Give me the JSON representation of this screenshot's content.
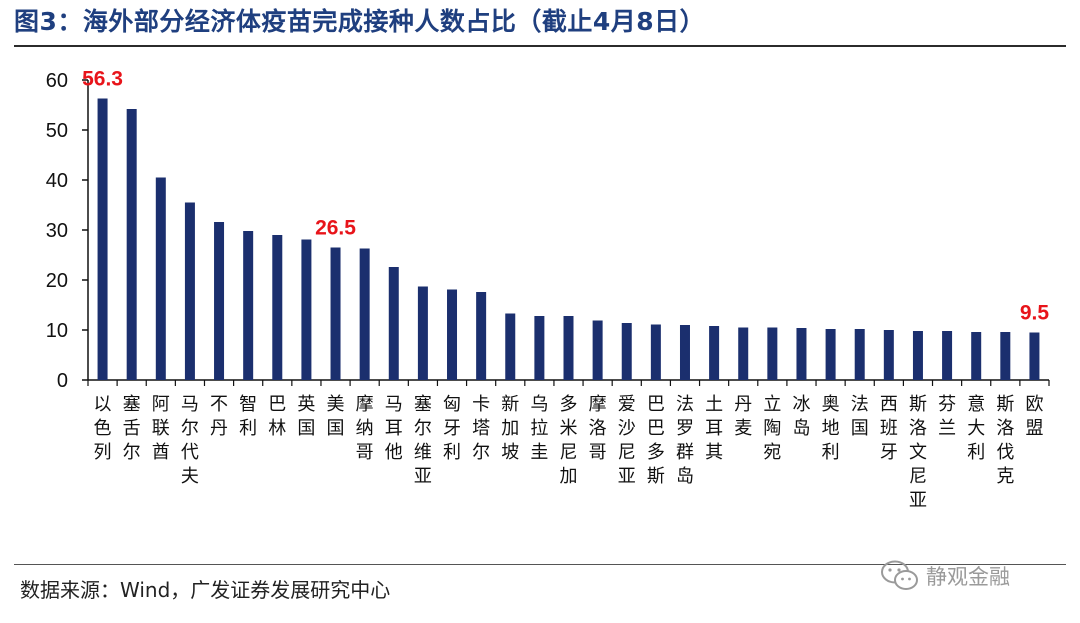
{
  "header": {
    "title": "图3：海外部分经济体疫苗完成接种人数占比（截止4月8日）"
  },
  "footer": {
    "source": "数据来源：Wind，广发证券发展研究中心"
  },
  "watermark": {
    "text": "静观金融",
    "icon": "wechat-icon",
    "color": "#9a9a9a"
  },
  "colors": {
    "bar": "#1b2f6e",
    "label": "#e8141a",
    "title": "#1f3f7f"
  },
  "chart_data": {
    "type": "bar",
    "title": "",
    "xlabel": "",
    "ylabel": "",
    "ylim": [
      0,
      60
    ],
    "yticks": [
      0,
      10,
      20,
      30,
      40,
      50,
      60
    ],
    "grid": false,
    "legend": "none",
    "categories": [
      "以色列",
      "塞舌尔",
      "阿联酋",
      "马尔代夫",
      "不丹",
      "智利",
      "巴林",
      "英国",
      "美国",
      "摩纳哥",
      "马耳他",
      "塞尔维亚",
      "匈牙利",
      "卡塔尔",
      "新加坡",
      "乌拉圭",
      "多米尼加",
      "摩洛哥",
      "爱沙尼亚",
      "巴巴多斯",
      "法罗群岛",
      "土耳其",
      "丹麦",
      "立陶宛",
      "冰岛",
      "奥地利",
      "法国",
      "西班牙",
      "斯洛文尼亚",
      "芬兰",
      "意大利",
      "斯洛伐克",
      "欧盟"
    ],
    "values": [
      56.3,
      54.2,
      40.5,
      35.5,
      31.6,
      29.8,
      29.0,
      28.1,
      26.5,
      26.3,
      22.6,
      18.7,
      18.1,
      17.6,
      13.3,
      12.8,
      12.8,
      11.9,
      11.4,
      11.1,
      11.0,
      10.8,
      10.5,
      10.5,
      10.4,
      10.2,
      10.2,
      10.0,
      9.8,
      9.8,
      9.6,
      9.6,
      9.5
    ],
    "data_labels": [
      {
        "category": "以色列",
        "text": "56.3"
      },
      {
        "category": "美国",
        "text": "26.5"
      },
      {
        "category": "欧盟",
        "text": "9.5"
      }
    ]
  }
}
